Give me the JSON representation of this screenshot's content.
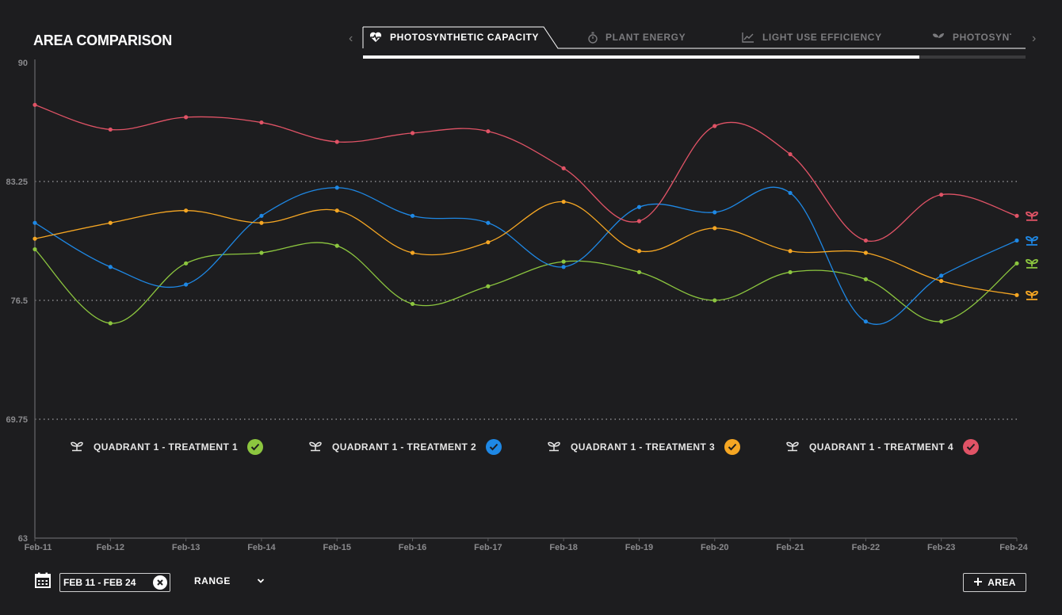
{
  "title": "AREA COMPARISON",
  "tabs": [
    {
      "label": "PHOTOSYNTHETIC CAPACITY",
      "icon": "heart-pulse-icon",
      "active": true
    },
    {
      "label": "PLANT ENERGY",
      "icon": "stopwatch-icon",
      "active": false
    },
    {
      "label": "LIGHT USE EFFICIENCY",
      "icon": "line-chart-icon",
      "active": false
    },
    {
      "label": "PHOTOSYNTH",
      "icon": "sprout-icon",
      "active": false
    }
  ],
  "tab_progress": 0.84,
  "tab_nav": {
    "prev": "‹",
    "next": "›"
  },
  "chart_data": {
    "type": "line",
    "categories": [
      "Feb-11",
      "Feb-12",
      "Feb-13",
      "Feb-14",
      "Feb-15",
      "Feb-16",
      "Feb-17",
      "Feb-18",
      "Feb-19",
      "Feb-20",
      "Feb-21",
      "Feb-22",
      "Feb-23",
      "Feb-24"
    ],
    "ylim": [
      63,
      90
    ],
    "yticks": [
      "90",
      "83.25",
      "76.5",
      "69.75",
      "63"
    ],
    "ytick_values": [
      90,
      83.25,
      76.5,
      69.75,
      63
    ],
    "grid": "dotted horizontal",
    "series": [
      {
        "name": "QUADRANT 1 - TREATMENT 1",
        "color": "#8cc63f",
        "values": [
          79.4,
          75.2,
          78.6,
          79.2,
          79.6,
          76.3,
          77.3,
          78.7,
          78.1,
          76.5,
          78.1,
          77.7,
          75.3,
          78.6
        ]
      },
      {
        "name": "QUADRANT 1 - TREATMENT 2",
        "color": "#1e88e5",
        "values": [
          80.9,
          78.4,
          77.4,
          81.3,
          82.9,
          81.3,
          80.9,
          78.4,
          81.8,
          81.5,
          82.6,
          75.3,
          77.9,
          79.9
        ]
      },
      {
        "name": "QUADRANT 1 - TREATMENT 3",
        "color": "#f5a623",
        "values": [
          80.0,
          80.9,
          81.6,
          80.9,
          81.6,
          79.2,
          79.8,
          82.1,
          79.3,
          80.6,
          79.3,
          79.2,
          77.6,
          76.8
        ]
      },
      {
        "name": "QUADRANT 1 - TREATMENT 4",
        "color": "#e05366",
        "values": [
          87.6,
          86.2,
          86.9,
          86.6,
          85.5,
          86.0,
          86.1,
          84.0,
          81.0,
          86.4,
          84.8,
          79.9,
          82.5,
          81.3
        ]
      }
    ]
  },
  "legend": [
    {
      "label": "QUADRANT 1 - TREATMENT 1",
      "color": "#8cc63f",
      "icon": "plant-icon",
      "checked": true
    },
    {
      "label": "QUADRANT 1 - TREATMENT 2",
      "color": "#1e88e5",
      "icon": "plant-icon",
      "checked": true
    },
    {
      "label": "QUADRANT 1 - TREATMENT 3",
      "color": "#f5a623",
      "icon": "plant-icon",
      "checked": true
    },
    {
      "label": "QUADRANT 1 - TREATMENT 4",
      "color": "#e05366",
      "icon": "plant-icon",
      "checked": true
    }
  ],
  "controls": {
    "date_range": "FEB 11 - FEB 24",
    "range_label": "RANGE",
    "add_area_label": "AREA",
    "calendar_icon": "calendar-icon",
    "clear_icon": "close-circle-icon",
    "add_icon": "plus-icon",
    "dropdown_icon": "chevron-down-icon"
  },
  "colors": {
    "background": "#1d1d1f",
    "axis": "#8a8a8d",
    "grid": "#8a8a8d",
    "tab_inactive": "#7b7b7e"
  }
}
